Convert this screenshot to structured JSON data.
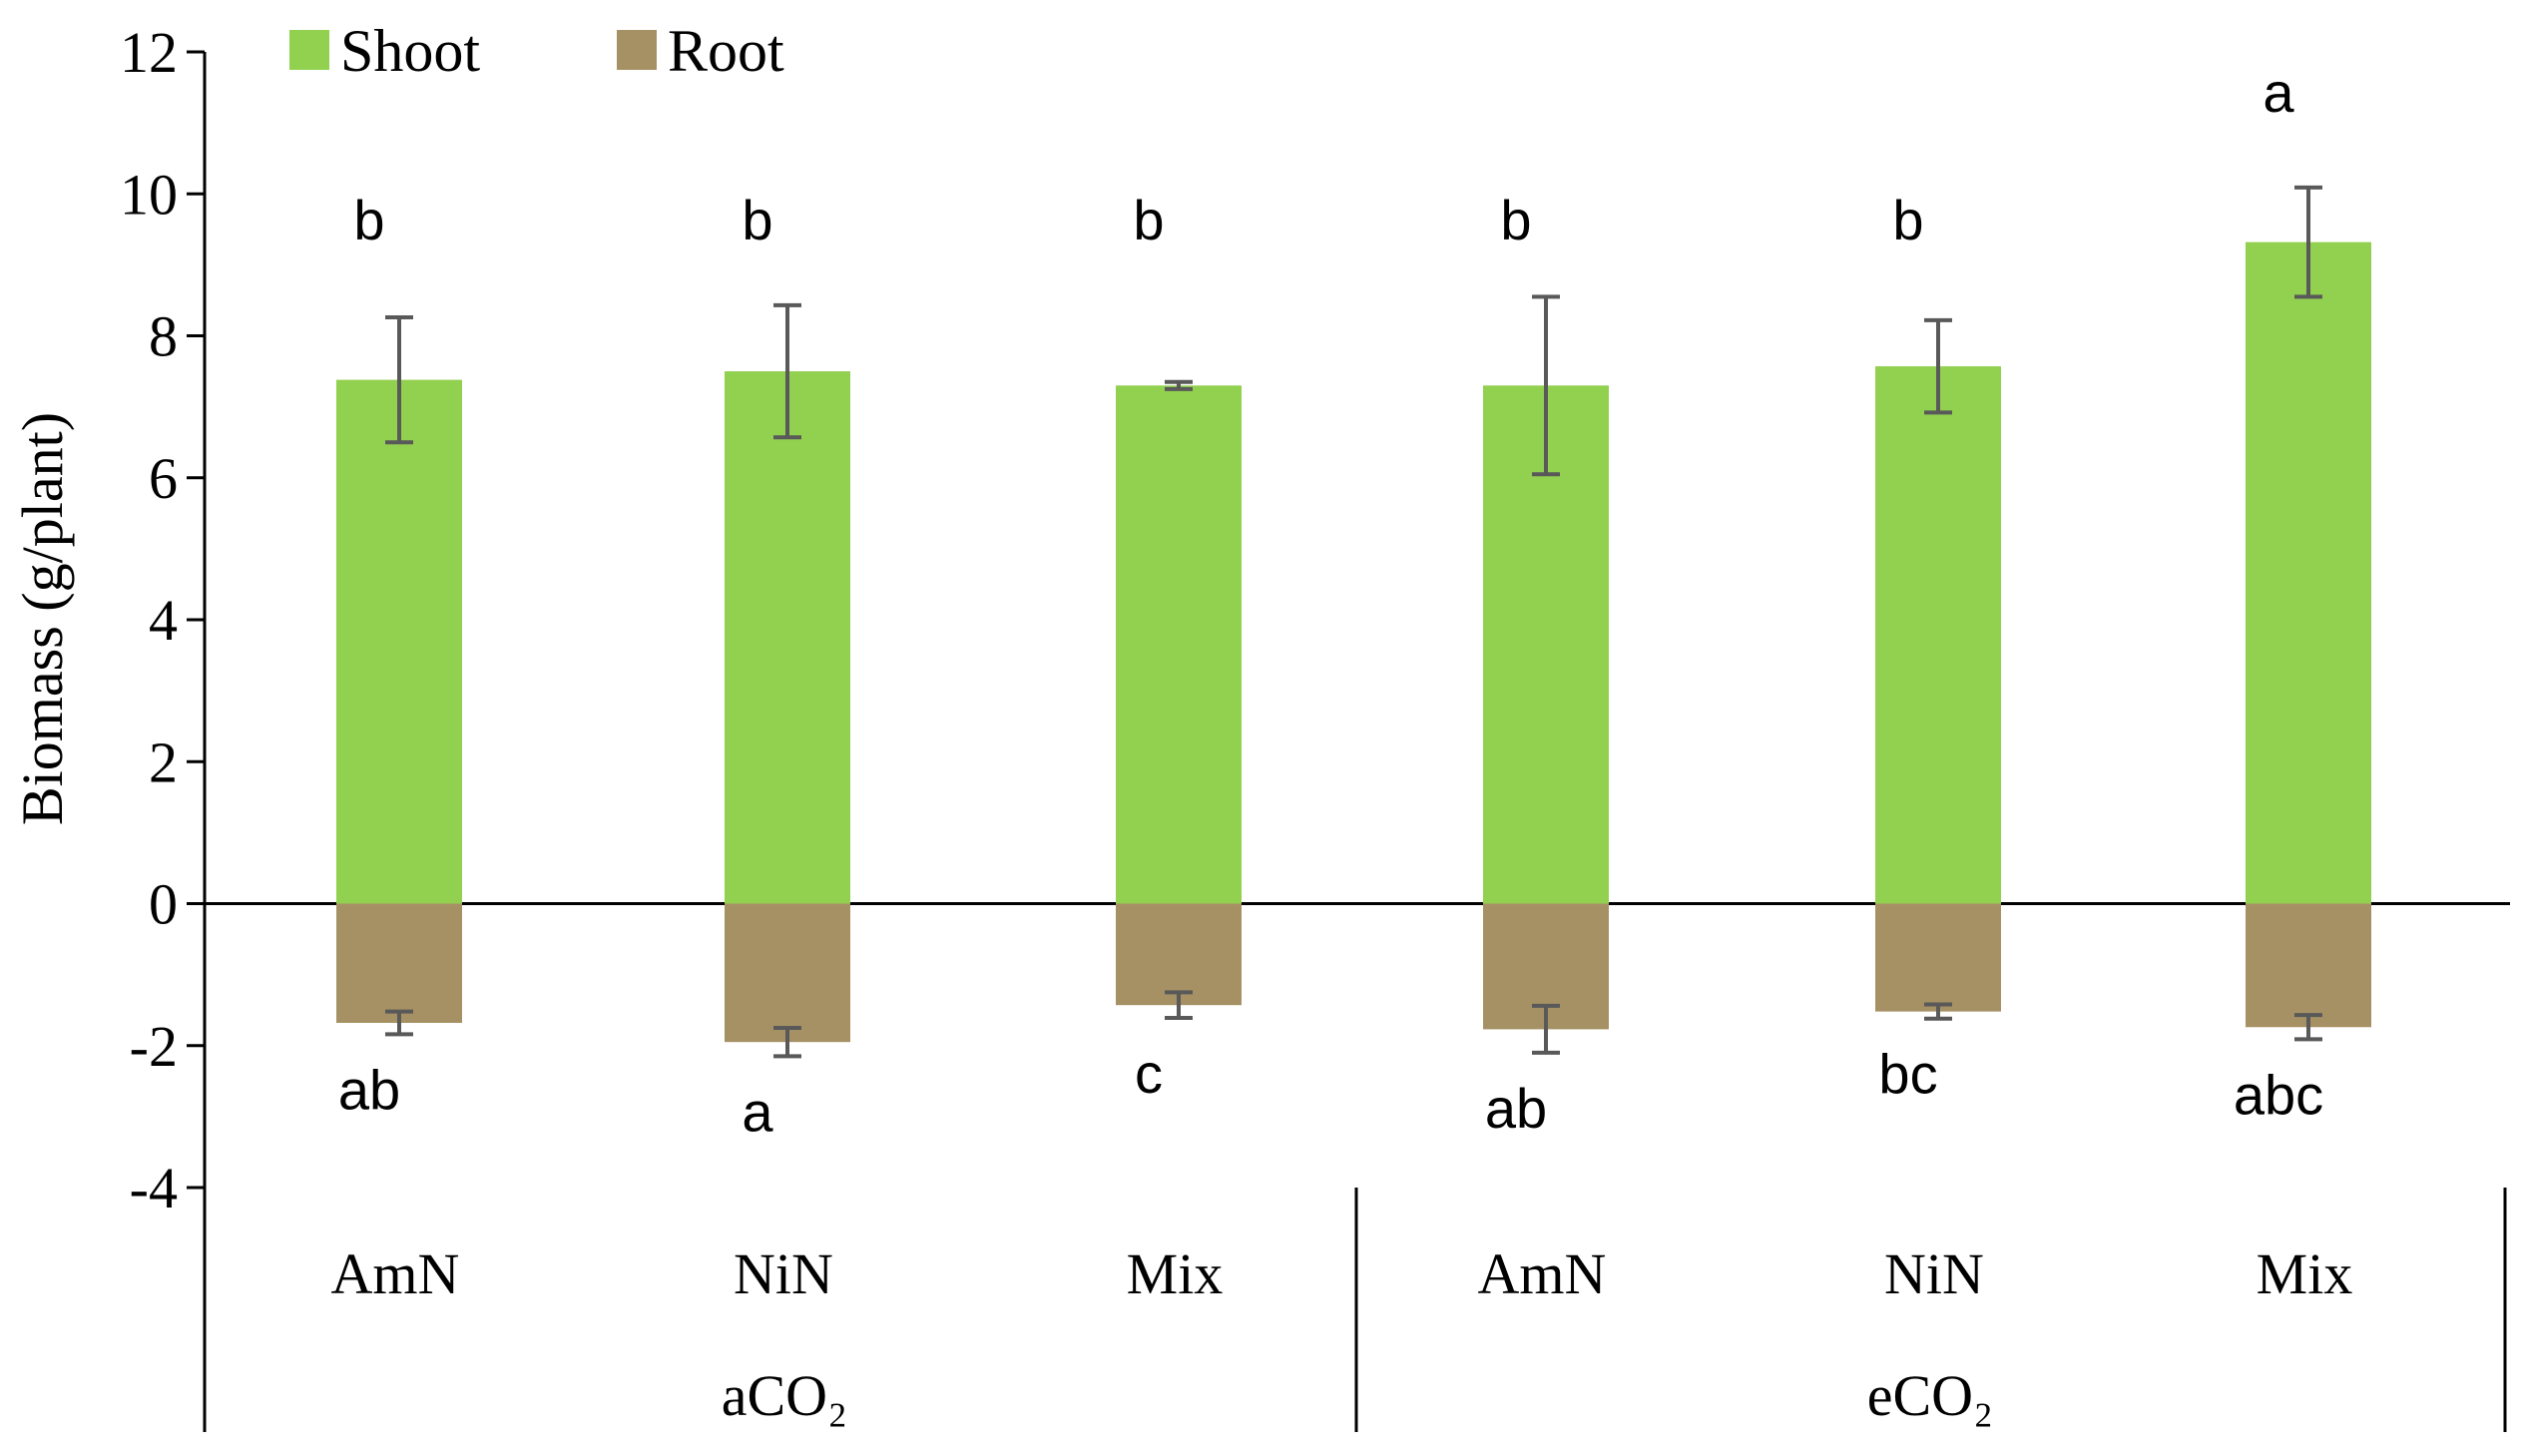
{
  "chart_data": {
    "type": "bar",
    "title": "",
    "ylabel": "Biomass (g/plant)",
    "xlabel": "",
    "ylim": [
      -4,
      12
    ],
    "yticks": [
      12,
      10,
      8,
      6,
      4,
      2,
      0,
      -2,
      -4
    ],
    "categories": [
      "AmN",
      "NiN",
      "Mix",
      "AmN",
      "NiN",
      "Mix"
    ],
    "groups": [
      {
        "label": "aCO₂",
        "categories": [
          "AmN",
          "NiN",
          "Mix"
        ]
      },
      {
        "label": "eCO₂",
        "categories": [
          "AmN",
          "NiN",
          "Mix"
        ]
      }
    ],
    "legend": {
      "position": "top-left"
    },
    "series": [
      {
        "name": "Shoot",
        "color": "#92d050",
        "values": [
          7.38,
          7.5,
          7.3,
          7.3,
          7.57,
          9.32
        ],
        "errors": [
          0.88,
          0.93,
          0.05,
          1.25,
          0.65,
          0.77
        ],
        "significance": [
          "b",
          "b",
          "b",
          "b",
          "b",
          "a"
        ]
      },
      {
        "name": "Root",
        "color": "#a69164",
        "values": [
          -1.68,
          -1.95,
          -1.43,
          -1.77,
          -1.52,
          -1.74
        ],
        "errors": [
          0.16,
          0.2,
          0.18,
          0.33,
          0.1,
          0.17
        ],
        "significance": [
          "ab",
          "a",
          "c",
          "ab",
          "bc",
          "abc"
        ]
      }
    ],
    "error_bar_color": "#595959"
  }
}
